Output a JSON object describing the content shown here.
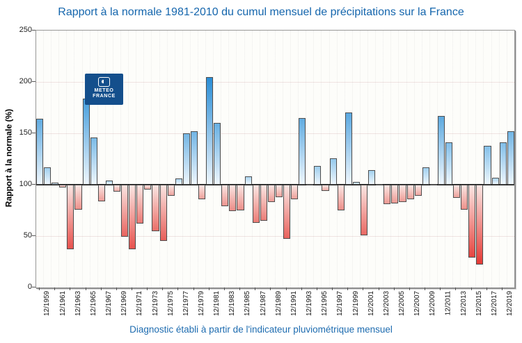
{
  "title": "Rapport à la normale 1981-2010 du cumul mensuel de précipitations sur la France",
  "caption": "Diagnostic établi à partir de l'indicateur pluviométrique mensuel",
  "logo": {
    "line1": "METEO",
    "line2": "FRANCE"
  },
  "y_axis": {
    "title": "Rapport à la normale (%)",
    "ticks": [
      0,
      50,
      100,
      150,
      200,
      250
    ]
  },
  "x_axis": {
    "tick_labels": [
      "12/1959",
      "12/1961",
      "12/1963",
      "12/1965",
      "12/1967",
      "12/1969",
      "12/1971",
      "12/1973",
      "12/1975",
      "12/1977",
      "12/1979",
      "12/1981",
      "12/1983",
      "12/1985",
      "12/1987",
      "12/1989",
      "12/1991",
      "12/1993",
      "12/1995",
      "12/1997",
      "12/1999",
      "12/2001",
      "12/2003",
      "12/2005",
      "12/2007",
      "12/2009",
      "12/2011",
      "12/2013",
      "12/2015",
      "12/2017",
      "12/2019"
    ]
  },
  "colors": {
    "title_blue": "#1566ad",
    "caption_blue": "#1e6cb0",
    "logo_blue": "#144f8c",
    "bar_border": "#4f4f4f",
    "blue_strong": "#2b8ed6",
    "blue_weak": "#b8dcf3",
    "blue_pale": "#eef6fd",
    "red_strong": "#e53a35",
    "red_weak": "#f0b7b1",
    "red_pale": "#fbe6e3",
    "baseline_black": "#1c1c1c"
  },
  "chart_data": {
    "type": "bar",
    "title": "Rapport à la normale 1981-2010 du cumul mensuel de précipitations sur la France",
    "ylabel": "Rapport à la normale (%)",
    "xlabel": "",
    "ylim": [
      0,
      250
    ],
    "baseline": 100,
    "legend": "none",
    "grid": "dotted",
    "categories": [
      "12/1959",
      "12/1960",
      "12/1961",
      "12/1962",
      "12/1963",
      "12/1964",
      "12/1965",
      "12/1966",
      "12/1967",
      "12/1968",
      "12/1969",
      "12/1970",
      "12/1971",
      "12/1972",
      "12/1973",
      "12/1974",
      "12/1975",
      "12/1976",
      "12/1977",
      "12/1978",
      "12/1979",
      "12/1980",
      "12/1981",
      "12/1982",
      "12/1983",
      "12/1984",
      "12/1985",
      "12/1986",
      "12/1987",
      "12/1988",
      "12/1989",
      "12/1990",
      "12/1991",
      "12/1992",
      "12/1993",
      "12/1994",
      "12/1995",
      "12/1996",
      "12/1997",
      "12/1998",
      "12/1999",
      "12/2000",
      "12/2001",
      "12/2002",
      "12/2003",
      "12/2004",
      "12/2005",
      "12/2006",
      "12/2007",
      "12/2008",
      "12/2009",
      "12/2010",
      "12/2011",
      "12/2012",
      "12/2013",
      "12/2014",
      "12/2015",
      "12/2016",
      "12/2017",
      "12/2018",
      "12/2019",
      "12/2020"
    ],
    "values": [
      164,
      117,
      102,
      97,
      37,
      76,
      184,
      146,
      84,
      104,
      93,
      49,
      37,
      62,
      95,
      55,
      45,
      89,
      106,
      150,
      152,
      86,
      205,
      160,
      79,
      74,
      75,
      108,
      63,
      65,
      83,
      88,
      47,
      86,
      165,
      101,
      118,
      94,
      126,
      75,
      170,
      103,
      51,
      114,
      100,
      81,
      82,
      83,
      86,
      89,
      117,
      101,
      167,
      141,
      87,
      76,
      29,
      22,
      138,
      107,
      141,
      152
    ]
  }
}
